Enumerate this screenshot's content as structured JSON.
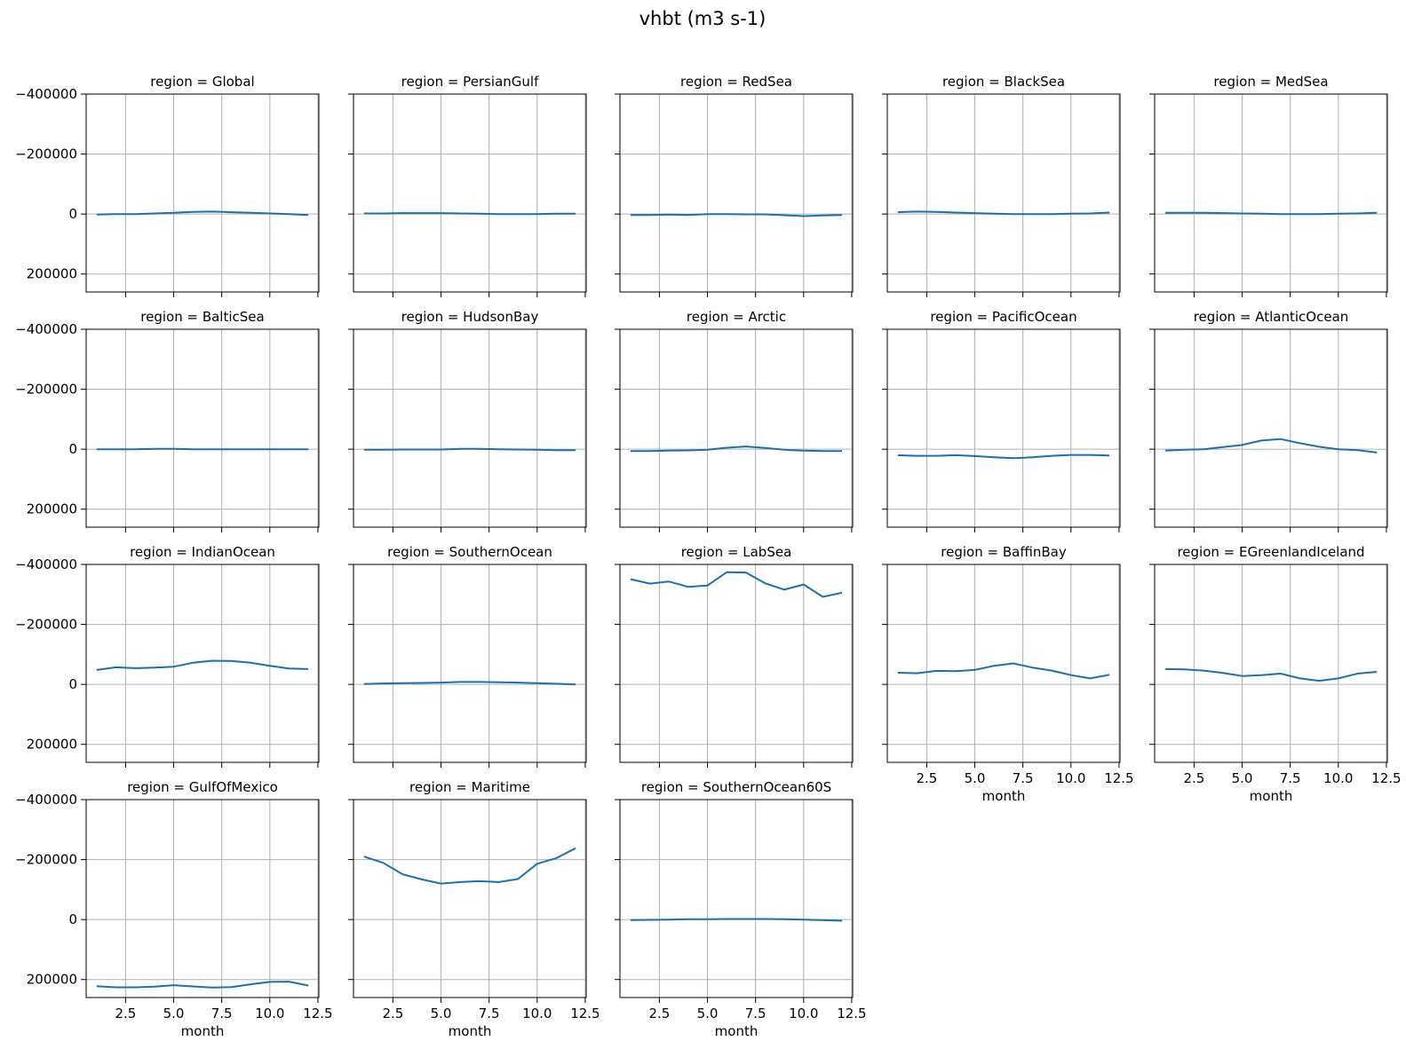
{
  "figure": {
    "title": "vhbt (m3 s-1)"
  },
  "chart_data": {
    "type": "line",
    "title": "vhbt (m3 s-1)",
    "xlabel": "month",
    "ylabel": "",
    "xlim": [
      0.45,
      12.55
    ],
    "ylim": [
      -400000,
      260000
    ],
    "y_inverted": true,
    "grid": true,
    "line_color": "#1f6fa8",
    "x_tick_values": [
      2.5,
      5.0,
      7.5,
      10.0,
      12.5
    ],
    "x_tick_labels": [
      "2.5",
      "5.0",
      "7.5",
      "10.0",
      "12.5"
    ],
    "y_tick_values": [
      -400000,
      -200000,
      0,
      200000
    ],
    "y_tick_labels": [
      "−400000",
      "−200000",
      "0",
      "200000"
    ],
    "x": [
      1,
      2,
      3,
      4,
      5,
      6,
      7,
      8,
      9,
      10,
      11,
      12
    ],
    "panels": [
      {
        "title": "region = Global",
        "values": [
          2000,
          0,
          0,
          -2000,
          -4000,
          -7000,
          -8000,
          -6000,
          -4000,
          -2000,
          0,
          3000
        ]
      },
      {
        "title": "region = PersianGulf",
        "values": [
          -2000,
          -2000,
          -3000,
          -3000,
          -3000,
          -2000,
          -1000,
          0,
          0,
          0,
          -1000,
          -1000
        ]
      },
      {
        "title": "region = RedSea",
        "values": [
          3000,
          3000,
          2000,
          3000,
          0,
          0,
          1000,
          1000,
          4000,
          7000,
          5000,
          3000
        ]
      },
      {
        "title": "region = BlackSea",
        "values": [
          -6000,
          -8000,
          -7000,
          -5000,
          -3000,
          -1000,
          0,
          0,
          0,
          -1000,
          -2000,
          -5000
        ]
      },
      {
        "title": "region = MedSea",
        "values": [
          -4000,
          -4000,
          -4000,
          -3000,
          -2000,
          -1000,
          0,
          0,
          0,
          -1000,
          -2000,
          -4000
        ]
      },
      {
        "title": "region = BalticSea",
        "values": [
          0,
          0,
          0,
          -1000,
          -1000,
          0,
          0,
          0,
          0,
          0,
          0,
          0
        ]
      },
      {
        "title": "region = HudsonBay",
        "values": [
          2000,
          2000,
          1000,
          1000,
          1000,
          -1000,
          -1000,
          0,
          1000,
          2000,
          3000,
          3000
        ]
      },
      {
        "title": "region = Arctic",
        "values": [
          6000,
          6000,
          5000,
          4000,
          2000,
          -5000,
          -9000,
          -4000,
          2000,
          5000,
          6000,
          6000
        ]
      },
      {
        "title": "region = PacificOcean",
        "values": [
          20000,
          22000,
          22000,
          20000,
          23000,
          27000,
          30000,
          27000,
          22000,
          19000,
          19000,
          21000
        ]
      },
      {
        "title": "region = AtlanticOcean",
        "values": [
          5000,
          2000,
          0,
          -7000,
          -14000,
          -29000,
          -34000,
          -20000,
          -8000,
          0,
          3000,
          11000
        ]
      },
      {
        "title": "region = IndianOcean",
        "values": [
          -48000,
          -57000,
          -54000,
          -56000,
          -59000,
          -72000,
          -79000,
          -78000,
          -72000,
          -62000,
          -53000,
          -51000
        ]
      },
      {
        "title": "region = SouthernOcean",
        "values": [
          -1000,
          -3000,
          -4000,
          -5000,
          -6000,
          -8000,
          -8000,
          -7000,
          -6000,
          -4000,
          -2000,
          0
        ]
      },
      {
        "title": "region = LabSea",
        "values": [
          -351000,
          -336000,
          -343000,
          -325000,
          -330000,
          -374000,
          -373000,
          -337000,
          -316000,
          -333000,
          -292000,
          -306000
        ]
      },
      {
        "title": "region = BaffinBay",
        "values": [
          -39000,
          -37000,
          -45000,
          -44000,
          -48000,
          -62000,
          -70000,
          -56000,
          -46000,
          -31000,
          -20000,
          -32000
        ]
      },
      {
        "title": "region = EGreenlandIceland",
        "values": [
          -51000,
          -50000,
          -46000,
          -38000,
          -28000,
          -31000,
          -36000,
          -20000,
          -12000,
          -20000,
          -36000,
          -42000
        ]
      },
      {
        "title": "region = GulfOfMexico",
        "values": [
          222000,
          226000,
          226000,
          224000,
          219000,
          223000,
          227000,
          225000,
          216000,
          208000,
          207000,
          220000
        ]
      },
      {
        "title": "region = Maritime",
        "values": [
          -210000,
          -189000,
          -151000,
          -134000,
          -120000,
          -125000,
          -128000,
          -125000,
          -135000,
          -186000,
          -205000,
          -238000
        ]
      },
      {
        "title": "region = SouthernOcean60S",
        "values": [
          2000,
          1000,
          0,
          -1000,
          -1000,
          -2000,
          -2000,
          -2000,
          -1000,
          0,
          2000,
          4000
        ]
      }
    ]
  }
}
